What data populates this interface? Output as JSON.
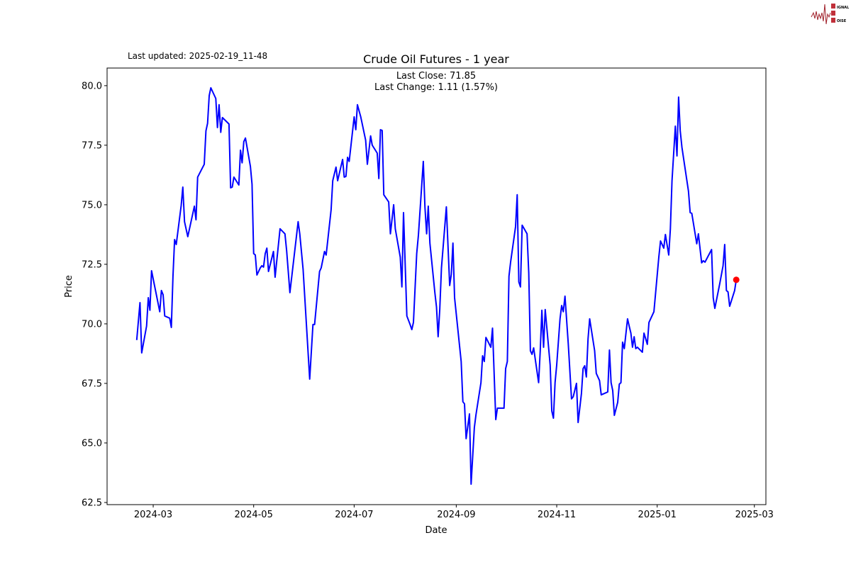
{
  "header": {
    "last_updated": "Last updated: 2025-02-19_11-48",
    "logo_text": "SIGNAL 2 NOISE"
  },
  "chart_data": {
    "type": "line",
    "title": "Crude Oil Futures - 1 year",
    "annotation_close": "Last Close: 71.85",
    "annotation_change": "Last Change: 1.11 (1.57%)",
    "xlabel": "Date",
    "ylabel": "Price",
    "xlim": [
      "2024-02-02",
      "2025-03-08"
    ],
    "ylim": [
      62.41,
      80.74
    ],
    "x_ticks": [
      "2024-03",
      "2024-05",
      "2024-07",
      "2024-09",
      "2024-11",
      "2025-01",
      "2025-03"
    ],
    "y_ticks": [
      "62.5",
      "65.0",
      "67.5",
      "70.0",
      "72.5",
      "75.0",
      "77.5",
      "80.0"
    ],
    "grid": false,
    "line_color": "#0000ff",
    "marker_color": "#ff0000",
    "last_point": {
      "date": "2025-02-18",
      "value": 71.85
    },
    "series": [
      {
        "dates": [
          "2024-02-20",
          "2024-02-22",
          "2024-02-23",
          "2024-02-26",
          "2024-02-27",
          "2024-02-28",
          "2024-02-29",
          "2024-03-05",
          "2024-03-06",
          "2024-03-07",
          "2024-03-08",
          "2024-03-11",
          "2024-03-12",
          "2024-03-13",
          "2024-03-14",
          "2024-03-15",
          "2024-03-18",
          "2024-03-19",
          "2024-03-20",
          "2024-03-22",
          "2024-03-26",
          "2024-03-27",
          "2024-03-28",
          "2024-04-01",
          "2024-04-02",
          "2024-04-03",
          "2024-04-04",
          "2024-04-05",
          "2024-04-08",
          "2024-04-09",
          "2024-04-10",
          "2024-04-11",
          "2024-04-12",
          "2024-04-16",
          "2024-04-17",
          "2024-04-18",
          "2024-04-19",
          "2024-04-22",
          "2024-04-23",
          "2024-04-24",
          "2024-04-25",
          "2024-04-26",
          "2024-04-29",
          "2024-04-30",
          "2024-05-01",
          "2024-05-02",
          "2024-05-03",
          "2024-05-05",
          "2024-05-06",
          "2024-05-07",
          "2024-05-08",
          "2024-05-09",
          "2024-05-10",
          "2024-05-13",
          "2024-05-14",
          "2024-05-17",
          "2024-05-20",
          "2024-05-21",
          "2024-05-23",
          "2024-05-28",
          "2024-05-29",
          "2024-05-31",
          "2024-06-04",
          "2024-06-06",
          "2024-06-07",
          "2024-06-10",
          "2024-06-11",
          "2024-06-13",
          "2024-06-14",
          "2024-06-17",
          "2024-06-18",
          "2024-06-20",
          "2024-06-21",
          "2024-06-24",
          "2024-06-25",
          "2024-06-26",
          "2024-06-27",
          "2024-06-28",
          "2024-07-01",
          "2024-07-02",
          "2024-07-03",
          "2024-07-05",
          "2024-07-08",
          "2024-07-09",
          "2024-07-11",
          "2024-07-12",
          "2024-07-15",
          "2024-07-16",
          "2024-07-17",
          "2024-07-18",
          "2024-07-19",
          "2024-07-22",
          "2024-07-23",
          "2024-07-25",
          "2024-07-26",
          "2024-07-29",
          "2024-07-30",
          "2024-07-31",
          "2024-08-02",
          "2024-08-04",
          "2024-08-05",
          "2024-08-06",
          "2024-08-08",
          "2024-08-09",
          "2024-08-12",
          "2024-08-13",
          "2024-08-14",
          "2024-08-15",
          "2024-08-16",
          "2024-08-19",
          "2024-08-20",
          "2024-08-21",
          "2024-08-22",
          "2024-08-23",
          "2024-08-26",
          "2024-08-28",
          "2024-08-29",
          "2024-08-30",
          "2024-08-31",
          "2024-09-04",
          "2024-09-05",
          "2024-09-06",
          "2024-09-07",
          "2024-09-09",
          "2024-09-10",
          "2024-09-12",
          "2024-09-13",
          "2024-09-16",
          "2024-09-17",
          "2024-09-18",
          "2024-09-19",
          "2024-09-22",
          "2024-09-23",
          "2024-09-25",
          "2024-09-26",
          "2024-09-30",
          "2024-10-01",
          "2024-10-02",
          "2024-10-03",
          "2024-10-04",
          "2024-10-07",
          "2024-10-08",
          "2024-10-09",
          "2024-10-10",
          "2024-10-11",
          "2024-10-14",
          "2024-10-15",
          "2024-10-16",
          "2024-10-17",
          "2024-10-18",
          "2024-10-21",
          "2024-10-22",
          "2024-10-23",
          "2024-10-24",
          "2024-10-25",
          "2024-10-28",
          "2024-10-29",
          "2024-10-30",
          "2024-10-31",
          "2024-11-01",
          "2024-11-03",
          "2024-11-04",
          "2024-11-05",
          "2024-11-06",
          "2024-11-08",
          "2024-11-10",
          "2024-11-11",
          "2024-11-13",
          "2024-11-14",
          "2024-11-16",
          "2024-11-17",
          "2024-11-18",
          "2024-11-19",
          "2024-11-20",
          "2024-11-21",
          "2024-11-24",
          "2024-11-25",
          "2024-11-27",
          "2024-11-28",
          "2024-11-30",
          "2024-12-02",
          "2024-12-03",
          "2024-12-04",
          "2024-12-05",
          "2024-12-06",
          "2024-12-08",
          "2024-12-09",
          "2024-12-10",
          "2024-12-11",
          "2024-12-12",
          "2024-12-14",
          "2024-12-15",
          "2024-12-16",
          "2024-12-17",
          "2024-12-18",
          "2024-12-19",
          "2024-12-20",
          "2024-12-23",
          "2024-12-24",
          "2024-12-26",
          "2024-12-27",
          "2024-12-30",
          "2025-01-02",
          "2025-01-03",
          "2025-01-05",
          "2025-01-06",
          "2025-01-08",
          "2025-01-09",
          "2025-01-10",
          "2025-01-12",
          "2025-01-13",
          "2025-01-14",
          "2025-01-15",
          "2025-01-16",
          "2025-01-20",
          "2025-01-21",
          "2025-01-22",
          "2025-01-25",
          "2025-01-26",
          "2025-01-28",
          "2025-01-29",
          "2025-01-30",
          "2025-02-03",
          "2025-02-04",
          "2025-02-05",
          "2025-02-08",
          "2025-02-10",
          "2025-02-11",
          "2025-02-12",
          "2025-02-13",
          "2025-02-14",
          "2025-02-17",
          "2025-02-18"
        ],
        "values": [
          69.32,
          70.89,
          68.78,
          69.91,
          71.1,
          70.57,
          72.23,
          70.51,
          71.4,
          71.22,
          70.33,
          70.24,
          69.85,
          71.99,
          73.54,
          73.33,
          74.97,
          75.74,
          74.29,
          73.66,
          74.94,
          74.37,
          76.16,
          76.7,
          78.1,
          78.42,
          79.58,
          79.91,
          79.46,
          78.24,
          79.2,
          78.04,
          78.66,
          78.39,
          75.71,
          75.74,
          76.16,
          75.83,
          77.29,
          76.76,
          77.65,
          77.8,
          76.61,
          75.86,
          72.95,
          72.89,
          72.05,
          72.35,
          72.44,
          72.38,
          72.95,
          73.18,
          72.2,
          73.04,
          71.96,
          73.99,
          73.78,
          73.07,
          71.31,
          74.29,
          73.78,
          72.29,
          67.68,
          69.97,
          69.97,
          72.2,
          72.35,
          73.04,
          72.89,
          74.79,
          76.01,
          76.58,
          76.01,
          76.9,
          76.16,
          76.19,
          76.99,
          76.82,
          78.69,
          78.15,
          79.2,
          78.69,
          77.71,
          76.7,
          77.89,
          77.5,
          77.17,
          76.1,
          78.15,
          78.12,
          75.42,
          75.12,
          73.78,
          75.0,
          73.99,
          72.8,
          71.55,
          74.67,
          70.33,
          69.97,
          69.76,
          70.06,
          72.95,
          73.72,
          76.82,
          74.91,
          73.78,
          74.94,
          73.39,
          71.31,
          70.71,
          69.46,
          70.6,
          72.35,
          74.91,
          71.61,
          72.08,
          73.39,
          71.1,
          68.42,
          66.73,
          66.64,
          65.18,
          66.22,
          63.27,
          65.65,
          66.19,
          67.53,
          68.66,
          68.42,
          69.43,
          69.02,
          69.82,
          65.98,
          66.46,
          66.46,
          68.12,
          68.42,
          72.0,
          72.59,
          74.08,
          75.42,
          71.76,
          71.55,
          74.14,
          73.78,
          72.14,
          68.87,
          68.72,
          68.99,
          67.53,
          68.87,
          70.57,
          69.02,
          70.6,
          68.27,
          66.34,
          66.04,
          67.53,
          68.27,
          70.21,
          70.77,
          70.51,
          71.16,
          69.17,
          66.85,
          66.94,
          67.5,
          65.86,
          67.08,
          68.12,
          68.24,
          67.77,
          69.37,
          70.21,
          68.87,
          67.92,
          67.62,
          67.02,
          67.08,
          67.14,
          68.9,
          67.53,
          67.2,
          66.16,
          66.7,
          67.47,
          67.53,
          69.23,
          68.96,
          70.21,
          69.91,
          69.61,
          69.02,
          69.46,
          68.96,
          69.02,
          68.81,
          69.61,
          69.14,
          70.06,
          70.51,
          72.8,
          73.48,
          73.18,
          73.75,
          72.89,
          73.99,
          76.01,
          78.3,
          77.05,
          79.52,
          78.1,
          77.41,
          75.57,
          74.67,
          74.64,
          73.36,
          73.78,
          72.56,
          72.65,
          72.59,
          73.12,
          71.1,
          70.65,
          71.7,
          72.44,
          73.33,
          71.4,
          71.34,
          70.74,
          71.4,
          71.85
        ]
      }
    ]
  }
}
